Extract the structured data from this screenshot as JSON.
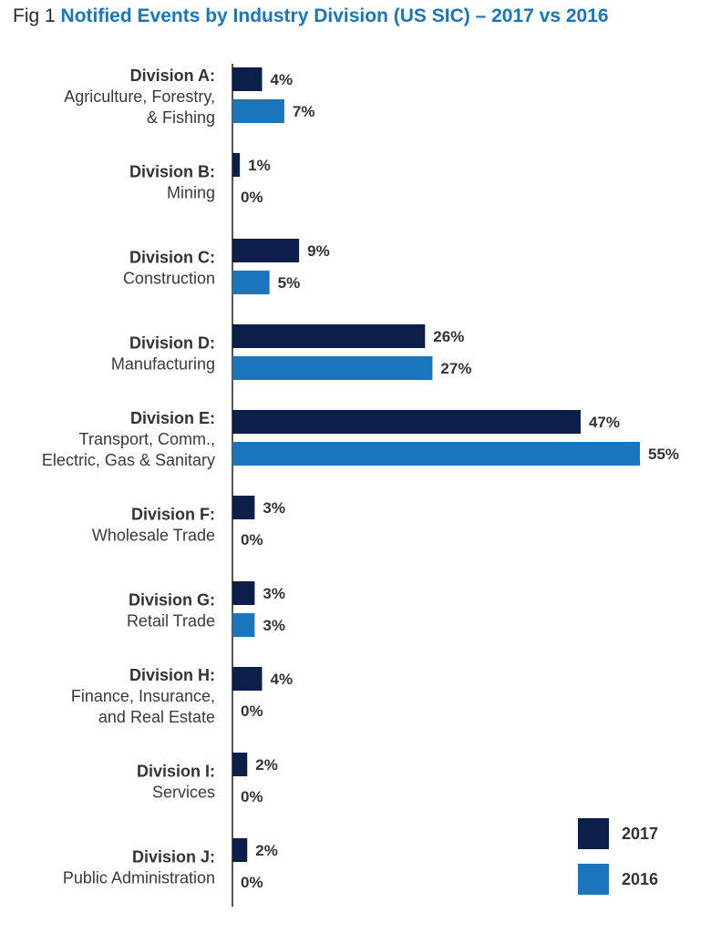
{
  "figure": {
    "prefix": "Fig 1",
    "title": "Notified Events by Industry Division (US SIC) – 2017 vs 2016"
  },
  "colors": {
    "2017": "#0c1f4b",
    "2016": "#1a75bc"
  },
  "chart_data": {
    "type": "bar",
    "orientation": "horizontal",
    "title": "Notified Events by Industry Division (US SIC) – 2017 vs 2016",
    "value_suffix": "%",
    "legend_position": "bottom-right",
    "grid": false,
    "xlim": [
      0,
      55
    ],
    "categories": [
      {
        "bold": "Division A:",
        "lines": [
          "Agriculture, Forestry,",
          "& Fishing"
        ]
      },
      {
        "bold": "Division B:",
        "lines": [
          "Mining"
        ]
      },
      {
        "bold": "Division C:",
        "lines": [
          "Construction"
        ]
      },
      {
        "bold": "Division D:",
        "lines": [
          "Manufacturing"
        ]
      },
      {
        "bold": "Division E:",
        "lines": [
          "Transport, Comm.,",
          "Electric, Gas & Sanitary"
        ]
      },
      {
        "bold": "Division F:",
        "lines": [
          "Wholesale Trade"
        ]
      },
      {
        "bold": "Division G:",
        "lines": [
          "Retail Trade"
        ]
      },
      {
        "bold": "Division H:",
        "lines": [
          "Finance, Insurance,",
          "and Real Estate"
        ]
      },
      {
        "bold": "Division I:",
        "lines": [
          "Services"
        ]
      },
      {
        "bold": "Division J:",
        "lines": [
          "Public Administration"
        ]
      }
    ],
    "series": [
      {
        "name": "2017",
        "values": [
          4,
          1,
          9,
          26,
          47,
          3,
          3,
          4,
          2,
          2
        ]
      },
      {
        "name": "2016",
        "values": [
          7,
          0,
          5,
          27,
          55,
          0,
          3,
          0,
          0,
          0
        ]
      }
    ]
  }
}
